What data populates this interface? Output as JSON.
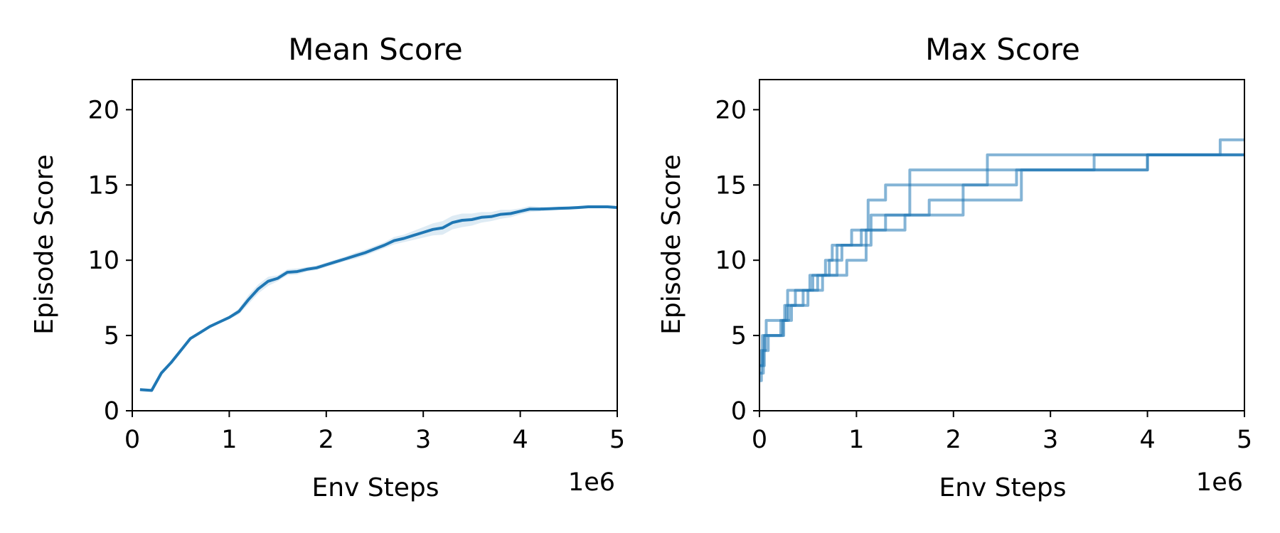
{
  "chart_data": [
    {
      "type": "line",
      "title": "Mean Score",
      "xlabel": "Env Steps",
      "ylabel": "Episode Score",
      "x_offset_label": "1e6",
      "xlim": [
        0,
        5
      ],
      "ylim": [
        0,
        22
      ],
      "xticks": [
        0,
        1,
        2,
        3,
        4,
        5
      ],
      "xtick_labels": [
        "0",
        "1",
        "2",
        "3",
        "4",
        "5"
      ],
      "yticks": [
        0,
        5,
        10,
        15,
        20
      ],
      "ytick_labels": [
        "0",
        "5",
        "10",
        "15",
        "20"
      ],
      "grid": false,
      "color": "#1f77b4",
      "series": [
        {
          "x": [
            0.08,
            0.2,
            0.3,
            0.4,
            0.5,
            0.6,
            0.7,
            0.8,
            0.9,
            1.0,
            1.1,
            1.2,
            1.3,
            1.4,
            1.5,
            1.6,
            1.7,
            1.8,
            1.9,
            2.0,
            2.1,
            2.2,
            2.3,
            2.4,
            2.5,
            2.6,
            2.7,
            2.8,
            2.9,
            3.0,
            3.1,
            3.2,
            3.3,
            3.4,
            3.5,
            3.6,
            3.7,
            3.8,
            3.9,
            4.0,
            4.1,
            4.2,
            4.3,
            4.4,
            4.5,
            4.6,
            4.7,
            4.8,
            4.9,
            5.0
          ],
          "y": [
            1.4,
            1.35,
            2.5,
            3.2,
            4.0,
            4.8,
            5.2,
            5.6,
            5.9,
            6.2,
            6.6,
            7.4,
            8.1,
            8.6,
            8.8,
            9.2,
            9.25,
            9.4,
            9.5,
            9.7,
            9.9,
            10.1,
            10.3,
            10.5,
            10.75,
            11.0,
            11.3,
            11.45,
            11.65,
            11.85,
            12.05,
            12.15,
            12.5,
            12.65,
            12.7,
            12.85,
            12.9,
            13.05,
            13.1,
            13.25,
            13.4,
            13.4,
            13.42,
            13.45,
            13.47,
            13.5,
            13.55,
            13.55,
            13.55,
            13.5
          ],
          "band_low": [
            1.3,
            1.25,
            2.4,
            3.1,
            3.9,
            4.7,
            5.1,
            5.5,
            5.8,
            6.1,
            6.4,
            7.1,
            7.8,
            8.3,
            8.6,
            9.0,
            9.05,
            9.25,
            9.35,
            9.55,
            9.75,
            9.95,
            10.1,
            10.3,
            10.55,
            10.8,
            11.05,
            11.2,
            11.35,
            11.5,
            11.65,
            11.7,
            12.05,
            12.2,
            12.3,
            12.5,
            12.6,
            12.75,
            12.85,
            13.05,
            13.2,
            13.25,
            13.3,
            13.33,
            13.36,
            13.4,
            13.45,
            13.45,
            13.45,
            13.4
          ],
          "band_high": [
            1.5,
            1.45,
            2.6,
            3.3,
            4.1,
            4.9,
            5.3,
            5.7,
            6.0,
            6.3,
            6.8,
            7.7,
            8.4,
            8.9,
            9.0,
            9.4,
            9.45,
            9.55,
            9.65,
            9.85,
            10.05,
            10.25,
            10.5,
            10.7,
            10.95,
            11.2,
            11.55,
            11.7,
            11.95,
            12.2,
            12.45,
            12.6,
            12.95,
            13.1,
            13.1,
            13.2,
            13.2,
            13.35,
            13.35,
            13.45,
            13.6,
            13.55,
            13.54,
            13.57,
            13.58,
            13.6,
            13.65,
            13.65,
            13.65,
            13.6
          ]
        }
      ]
    },
    {
      "type": "line",
      "step": true,
      "title": "Max Score",
      "xlabel": "Env Steps",
      "ylabel": "Episode Score",
      "x_offset_label": "1e6",
      "xlim": [
        0,
        5
      ],
      "ylim": [
        0,
        22
      ],
      "xticks": [
        0,
        1,
        2,
        3,
        4,
        5
      ],
      "xtick_labels": [
        "0",
        "1",
        "2",
        "3",
        "4",
        "5"
      ],
      "yticks": [
        0,
        5,
        10,
        15,
        20
      ],
      "ytick_labels": [
        "0",
        "5",
        "10",
        "15",
        "20"
      ],
      "grid": false,
      "color": "#1f77b4",
      "series": [
        {
          "x": [
            0,
            0.03,
            0.07,
            0.26,
            0.29,
            0.41,
            0.52,
            0.63,
            0.8,
            0.95,
            1.12,
            1.3,
            2.35,
            2.85,
            3.15,
            5.0
          ],
          "y": [
            3,
            5,
            6,
            7,
            8,
            8,
            9,
            9,
            11,
            12,
            14,
            15,
            17,
            17,
            17,
            17
          ]
        },
        {
          "x": [
            0,
            0.02,
            0.06,
            0.24,
            0.28,
            0.37,
            0.55,
            0.68,
            0.75,
            0.88,
            1.05,
            1.5,
            1.75,
            2.7,
            3.85,
            4.0,
            5.0
          ],
          "y": [
            2,
            4,
            5,
            6,
            7,
            8,
            9,
            10,
            11,
            11,
            12,
            13,
            14,
            16,
            16,
            17,
            17
          ]
        },
        {
          "x": [
            0,
            0.05,
            0.1,
            0.22,
            0.3,
            0.45,
            0.6,
            0.72,
            0.85,
            1.15,
            1.55,
            2.55,
            3.45,
            4.75,
            5.0
          ],
          "y": [
            3,
            5,
            5,
            6,
            7,
            8,
            9,
            10,
            11,
            13,
            16,
            16,
            17,
            18,
            18
          ]
        },
        {
          "x": [
            0,
            0.04,
            0.09,
            0.25,
            0.33,
            0.5,
            0.65,
            0.9,
            1.1,
            1.3,
            2.1,
            2.65,
            4.0,
            5.0
          ],
          "y": [
            2.5,
            4,
            5,
            6,
            7,
            8,
            9,
            10,
            12,
            13,
            15,
            16,
            17,
            17
          ]
        }
      ]
    }
  ]
}
